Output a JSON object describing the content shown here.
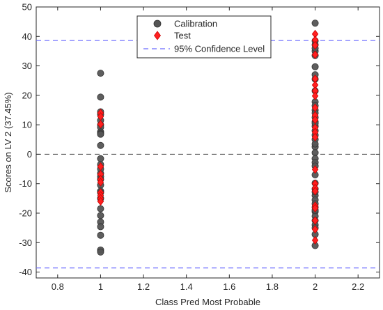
{
  "chart_data": {
    "type": "scatter",
    "xlabel": "Class Pred Most Probable",
    "ylabel": "Scores on LV 2 (37.45%)",
    "xlim": [
      0.7,
      2.3
    ],
    "ylim": [
      -42,
      50
    ],
    "xticks": [
      0.8,
      1,
      1.2,
      1.4,
      1.6,
      1.8,
      2,
      2.2
    ],
    "yticks": [
      -40,
      -30,
      -20,
      -10,
      0,
      10,
      20,
      30,
      40,
      50
    ],
    "xtick_labels": [
      "0.8",
      "1",
      "1.2",
      "1.4",
      "1.6",
      "1.8",
      "2",
      "2.2"
    ],
    "ytick_labels": [
      "-40",
      "-30",
      "-20",
      "-10",
      "0",
      "10",
      "20",
      "30",
      "40",
      "50"
    ],
    "grid": false,
    "legend_position": "top-center",
    "series": [
      {
        "name": "Calibration",
        "marker": "circle",
        "color": "#555555",
        "x": [
          1,
          1,
          1,
          1,
          1,
          1,
          1,
          1,
          1,
          1,
          1,
          1,
          1,
          1,
          1,
          1,
          1,
          1,
          1,
          1,
          1,
          1,
          1,
          1,
          1,
          1,
          1,
          1,
          2,
          2,
          2,
          2,
          2,
          2,
          2,
          2,
          2,
          2,
          2,
          2,
          2,
          2,
          2,
          2,
          2,
          2,
          2,
          2,
          2,
          2,
          2,
          2,
          2,
          2,
          2,
          2,
          2,
          2,
          2,
          2,
          2,
          2,
          2,
          2,
          2,
          2,
          2,
          2,
          2,
          2,
          2
        ],
        "y": [
          27.5,
          19.4,
          14.4,
          13.5,
          11.5,
          10,
          9.2,
          7.6,
          7.1,
          6.8,
          3,
          -1.5,
          -3.5,
          -6.5,
          -7.5,
          -8.5,
          -10.5,
          -12.5,
          -15,
          -18.5,
          -20.8,
          -23,
          -24.6,
          -27.5,
          -32.5,
          -33.2,
          -5,
          -13,
          44.5,
          38.5,
          37.2,
          35,
          33.5,
          29.7,
          25.5,
          21.5,
          17.8,
          16.5,
          15,
          12.5,
          11,
          9.5,
          8,
          6.5,
          5,
          2.5,
          0.5,
          -1.5,
          -2.8,
          -7,
          -9.8,
          -11.8,
          -14,
          -15.5,
          -16.8,
          -18,
          -19.5,
          -21,
          -22.5,
          -24,
          -25,
          -27.2,
          -31,
          36,
          27,
          14,
          10.5,
          3.5,
          -4,
          -12.8,
          -19
        ]
      },
      {
        "name": "Test",
        "marker": "diamond",
        "color": "#ff2020",
        "x": [
          1,
          1,
          1,
          1,
          1,
          1,
          1,
          1,
          1,
          1,
          1,
          2,
          2,
          2,
          2,
          2,
          2,
          2,
          2,
          2,
          2,
          2,
          2,
          2,
          2,
          2,
          2,
          2,
          2,
          2,
          2,
          2,
          2,
          2
        ],
        "y": [
          14,
          12.8,
          10.2,
          -4.2,
          -6.8,
          -8.5,
          -9.5,
          -13,
          -14,
          -15,
          -16,
          40.8,
          38.8,
          37,
          33.8,
          25.6,
          23.5,
          21.5,
          19.8,
          15.8,
          13.2,
          11.7,
          9,
          7.5,
          5.8,
          -5.2,
          -10,
          -11.5,
          -12.5,
          -17.5,
          -18.3,
          -22.5,
          -25.5,
          -29.2
        ]
      },
      {
        "name": "95% Confidence Level",
        "marker": "dashed-line",
        "color": "#6b6bff",
        "x": [
          0.7,
          2.3
        ],
        "y": [
          38.6,
          38.6
        ],
        "y_lower": -38.6
      }
    ],
    "zero_line": {
      "y": 0,
      "color": "#555555"
    }
  }
}
